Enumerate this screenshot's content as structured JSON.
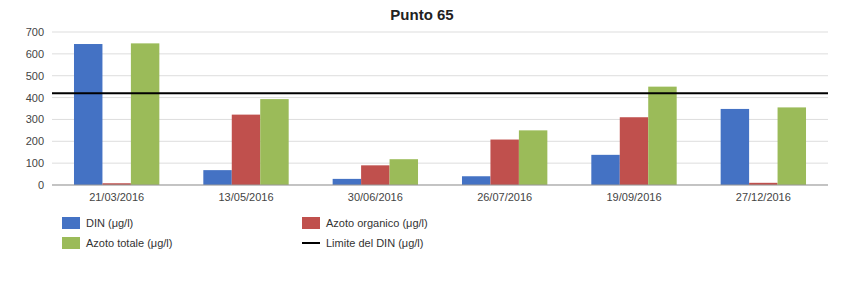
{
  "chart_data": {
    "type": "bar",
    "title": "Punto 65",
    "categories": [
      "21/03/2016",
      "13/05/2016",
      "30/06/2016",
      "26/07/2016",
      "19/09/2016",
      "27/12/2016"
    ],
    "series": [
      {
        "name": "DIN (μg/l)",
        "color": "#4472C4",
        "values": [
          645,
          68,
          28,
          40,
          138,
          348
        ]
      },
      {
        "name": "Azoto organico (μg/l)",
        "color": "#C0504D",
        "values": [
          8,
          322,
          90,
          208,
          310,
          10
        ]
      },
      {
        "name": "Azoto totale (μg/l)",
        "color": "#9BBB59",
        "values": [
          648,
          393,
          118,
          250,
          450,
          355
        ]
      }
    ],
    "limit_line": {
      "name": "Limite del DIN (μg/l)",
      "value": 420,
      "color": "#000000"
    },
    "ylim": [
      0,
      700
    ],
    "yticks": [
      0,
      100,
      200,
      300,
      400,
      500,
      600,
      700
    ],
    "grid": true
  }
}
